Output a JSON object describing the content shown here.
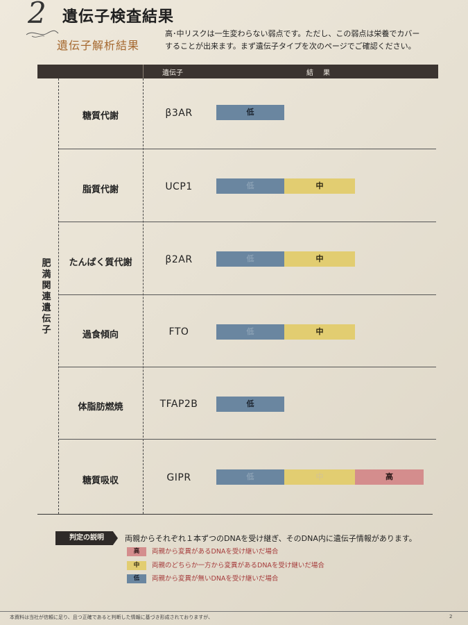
{
  "header": {
    "section_number": "2",
    "title": "遺伝子検査結果",
    "subtitle": "遺伝子解析結果",
    "description_line1": "高･中リスクは一生変わらない弱点です。ただし、この弱点は栄養でカバー",
    "description_line2": "することが出来ます。まず遺伝子タイプを次のページでご確認ください。"
  },
  "table": {
    "col_gene": "遺伝子",
    "col_result": "結果",
    "group_label": "肥満関連遺伝子",
    "rows": [
      {
        "category": "糖質代謝",
        "gene": "β3AR",
        "low": "低",
        "mid": "",
        "high": "",
        "result": "低"
      },
      {
        "category": "脂質代謝",
        "gene": "UCP1",
        "low": "低",
        "mid": "中",
        "high": "",
        "result": "中"
      },
      {
        "category": "たんぱく質代謝",
        "gene": "β2AR",
        "low": "低",
        "mid": "中",
        "high": "",
        "result": "中"
      },
      {
        "category": "過食傾向",
        "gene": "FTO",
        "low": "低",
        "mid": "中",
        "high": "",
        "result": "中"
      },
      {
        "category": "体脂肪燃焼",
        "gene": "TFAP2B",
        "low": "低",
        "mid": "",
        "high": "",
        "result": "低"
      },
      {
        "category": "糖質吸収",
        "gene": "GIPR",
        "low": "低",
        "mid": "中",
        "high": "高",
        "result": "高"
      }
    ]
  },
  "legend": {
    "tag": "判定の説明",
    "main_text": "両親からそれぞれ１本ずつのDNAを受け継ぎ、そのDNA内に遺伝子情報があります。",
    "items": [
      {
        "level": "高",
        "text": "両親から変異があるDNAを受け継いだ場合",
        "color": "#d48d8d"
      },
      {
        "level": "中",
        "text": "両親のどちらか一方から変異があるDNAを受け継いだ場合",
        "color": "#e2cd71"
      },
      {
        "level": "低",
        "text": "両親から変異が無いDNAを受け継いだ場合",
        "color": "#6a86a0"
      }
    ]
  },
  "footer": {
    "text": "本資料は当社が信頼に足り、且つ正確であると判断した情報に基づき形成されておりますが、",
    "page_number": "2"
  },
  "colors": {
    "low": "#6a86a0",
    "mid": "#e2cd71",
    "high": "#d48d8d",
    "header_bar": "#3b3430",
    "subtitle": "#a5682f"
  }
}
